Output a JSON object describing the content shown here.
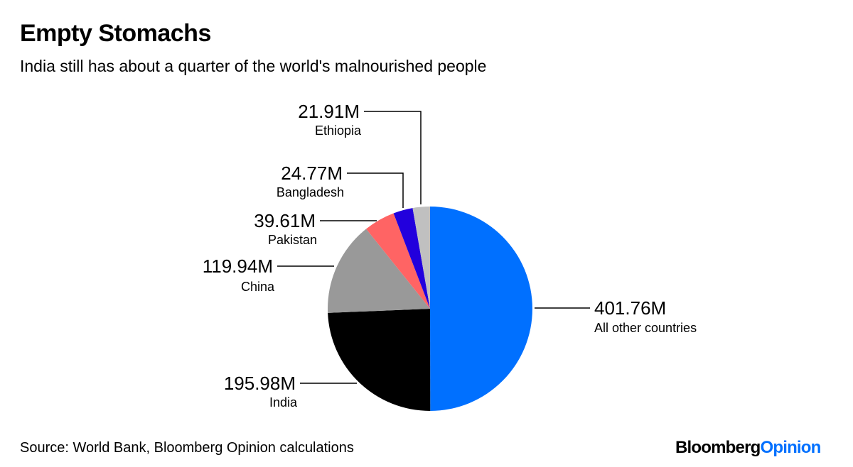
{
  "title": "Empty Stomachs",
  "subtitle": "India still has about a quarter of the world's malnourished people",
  "source": "Source: World Bank, Bloomberg Opinion calculations",
  "logo": {
    "part1": "Bloomberg",
    "part2": "Opinion"
  },
  "chart_data": {
    "type": "pie",
    "start": "12 o'clock, clockwise",
    "slices": [
      {
        "label": "All other countries",
        "value": 401.76,
        "value_label": "401.76M",
        "color": "#0070ff"
      },
      {
        "label": "India",
        "value": 195.98,
        "value_label": "195.98M",
        "color": "#000000"
      },
      {
        "label": "China",
        "value": 119.94,
        "value_label": "119.94M",
        "color": "#999999"
      },
      {
        "label": "Pakistan",
        "value": 39.61,
        "value_label": "39.61M",
        "color": "#ff6464"
      },
      {
        "label": "Bangladesh",
        "value": 24.77,
        "value_label": "24.77M",
        "color": "#2200dd"
      },
      {
        "label": "Ethiopia",
        "value": 21.91,
        "value_label": "21.91M",
        "color": "#c0c0c0"
      }
    ],
    "unit": "M"
  }
}
